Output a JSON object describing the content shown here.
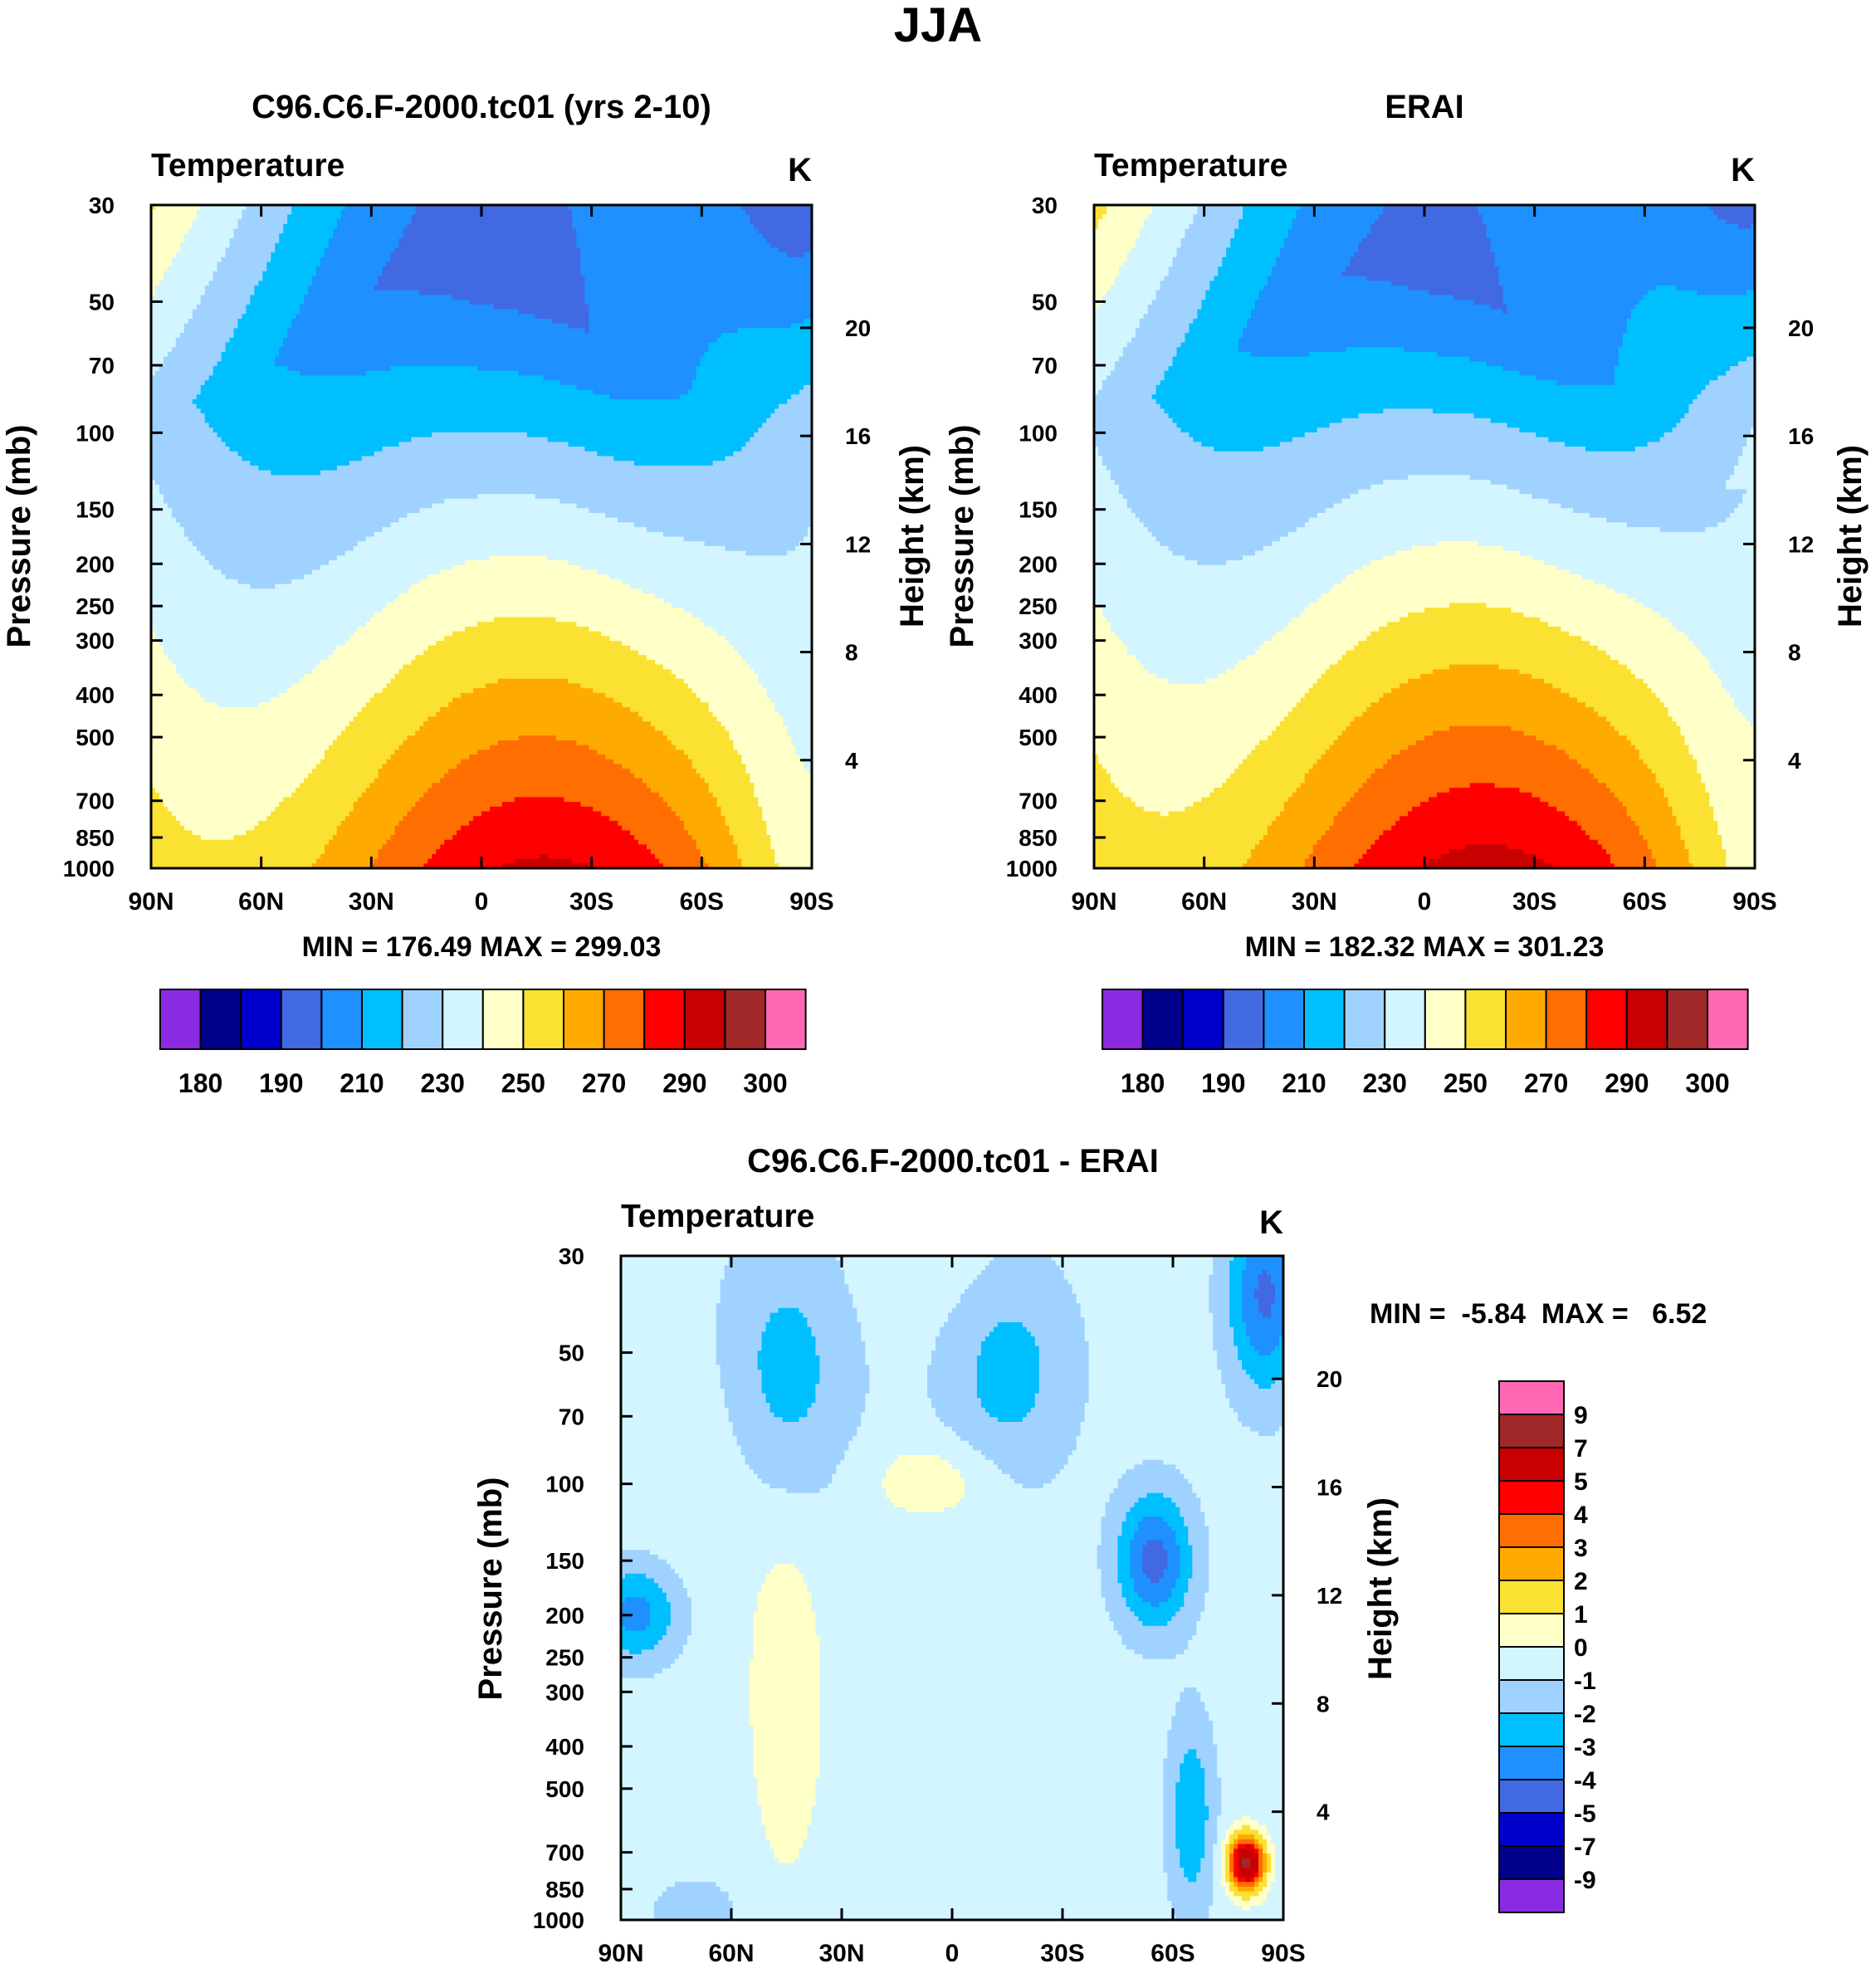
{
  "figure_title": "JJA",
  "colors": {
    "temperature": [
      "#8A2BE2",
      "#00008B",
      "#0000CD",
      "#4169E1",
      "#1E90FF",
      "#00BFFF",
      "#A0D2FF",
      "#D2F5FF",
      "#FFFFC8",
      "#FAE132",
      "#FFAA00",
      "#FF6E00",
      "#FF0000",
      "#C80000",
      "#A02828",
      "#FF69B4"
    ],
    "difference": [
      "#8A2BE2",
      "#00008B",
      "#0000CD",
      "#4169E1",
      "#1E90FF",
      "#00BFFF",
      "#A0D2FF",
      "#D2F5FF",
      "#FFFFC8",
      "#FAE132",
      "#FFAA00",
      "#FF6E00",
      "#FF0000",
      "#C80000",
      "#A02828",
      "#FF69B4"
    ]
  },
  "chart_data": [
    {
      "type": "heatmap",
      "id": "model",
      "title": "C96.C6.F-2000.tc01 (yrs 2-10)",
      "left_label": "Temperature",
      "units": "K",
      "ylabel": "Pressure (mb)",
      "ylabel_right": "Height (km)",
      "x_ticks": [
        "90N",
        "60N",
        "30N",
        "0",
        "30S",
        "60S",
        "90S"
      ],
      "x_values": [
        90,
        60,
        30,
        0,
        -30,
        -60,
        -90
      ],
      "p_ticks": [
        30,
        50,
        70,
        100,
        150,
        200,
        250,
        300,
        400,
        500,
        700,
        850,
        1000
      ],
      "p_range": [
        1000,
        30
      ],
      "height_ticks": [
        4,
        8,
        12,
        16,
        20
      ],
      "min_max_text": "MIN = 176.49  MAX = 299.03",
      "min": 176.49,
      "max": 299.03,
      "colorbar_labels": [
        "180",
        "190",
        "210",
        "230",
        "250",
        "270",
        "290",
        "300"
      ],
      "levels": [
        180,
        185,
        190,
        200,
        210,
        220,
        230,
        240,
        250,
        260,
        270,
        280,
        290,
        295,
        300
      ]
    },
    {
      "type": "heatmap",
      "id": "obs",
      "title": "ERAI",
      "left_label": "Temperature",
      "units": "K",
      "ylabel": "Pressure (mb)",
      "ylabel_right": "Height (km)",
      "x_ticks": [
        "90N",
        "60N",
        "30N",
        "0",
        "30S",
        "60S",
        "90S"
      ],
      "x_values": [
        90,
        60,
        30,
        0,
        -30,
        -60,
        -90
      ],
      "p_ticks": [
        30,
        50,
        70,
        100,
        150,
        200,
        250,
        300,
        400,
        500,
        700,
        850,
        1000
      ],
      "p_range": [
        1000,
        30
      ],
      "height_ticks": [
        4,
        8,
        12,
        16,
        20
      ],
      "min_max_text": "MIN = 182.32  MAX = 301.23",
      "min": 182.32,
      "max": 301.23,
      "colorbar_labels": [
        "180",
        "190",
        "210",
        "230",
        "250",
        "270",
        "290",
        "300"
      ],
      "levels": [
        180,
        185,
        190,
        200,
        210,
        220,
        230,
        240,
        250,
        260,
        270,
        280,
        290,
        295,
        300
      ]
    },
    {
      "type": "heatmap",
      "id": "diff",
      "title": "C96.C6.F-2000.tc01 - ERAI",
      "left_label": "Temperature",
      "units": "K",
      "ylabel": "Pressure (mb)",
      "ylabel_right": "Height (km)",
      "x_ticks": [
        "90N",
        "60N",
        "30N",
        "0",
        "30S",
        "60S",
        "90S"
      ],
      "x_values": [
        90,
        60,
        30,
        0,
        -30,
        -60,
        -90
      ],
      "p_ticks": [
        30,
        50,
        70,
        100,
        150,
        200,
        250,
        300,
        400,
        500,
        700,
        850,
        1000
      ],
      "p_range": [
        1000,
        30
      ],
      "height_ticks": [
        4,
        8,
        12,
        16,
        20
      ],
      "min_max_text": "MIN =  -5.84  MAX =   6.52",
      "min": -5.84,
      "max": 6.52,
      "colorbar_labels": [
        "9",
        "7",
        "5",
        "4",
        "3",
        "2",
        "1",
        "0",
        "-1",
        "-2",
        "-3",
        "-4",
        "-5",
        "-7",
        "-9"
      ],
      "levels": [
        -9,
        -7,
        -5,
        -4,
        -3,
        -2,
        -1,
        0,
        1,
        2,
        3,
        4,
        5,
        7,
        9
      ]
    }
  ]
}
